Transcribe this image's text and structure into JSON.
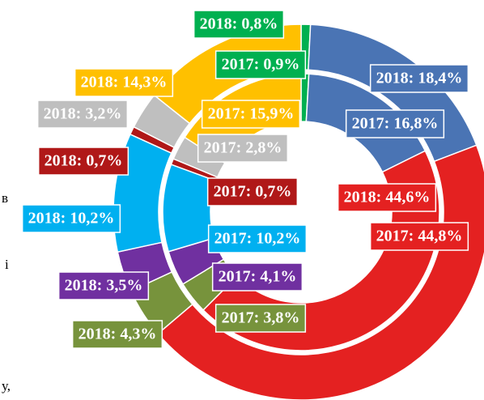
{
  "chart_data": {
    "type": "donut",
    "colors": [
      "#00b050",
      "#4a74b4",
      "#e42121",
      "#77933c",
      "#7030a0",
      "#00b0f0",
      "#b01818",
      "#bfbfbf",
      "#ffc000"
    ],
    "series": [
      {
        "name": "2018",
        "values": [
          0.8,
          18.4,
          44.6,
          4.3,
          3.5,
          10.2,
          0.7,
          3.2,
          14.3
        ],
        "value_labels": [
          "2018: 0,8%",
          "2018: 18,4%",
          "2018: 44,6%",
          "2018: 4,3%",
          "2018: 3,5%",
          "2018: 10,2%",
          "2018: 0,7%",
          "2018: 3,2%",
          "2018: 14,3%"
        ]
      },
      {
        "name": "2017",
        "values": [
          0.9,
          16.8,
          44.8,
          3.8,
          4.1,
          10.2,
          0.7,
          2.8,
          15.9
        ],
        "value_labels": [
          "2017: 0,9%",
          "2017: 16,8%",
          "2017: 44,8%",
          "2017: 3,8%",
          "2017: 4,1%",
          "2017: 10,2%",
          "2017: 0,7%",
          "2017: 2,8%",
          "2017: 15,9%"
        ]
      }
    ]
  },
  "background_text": [
    "в",
    "і",
    "у,"
  ]
}
